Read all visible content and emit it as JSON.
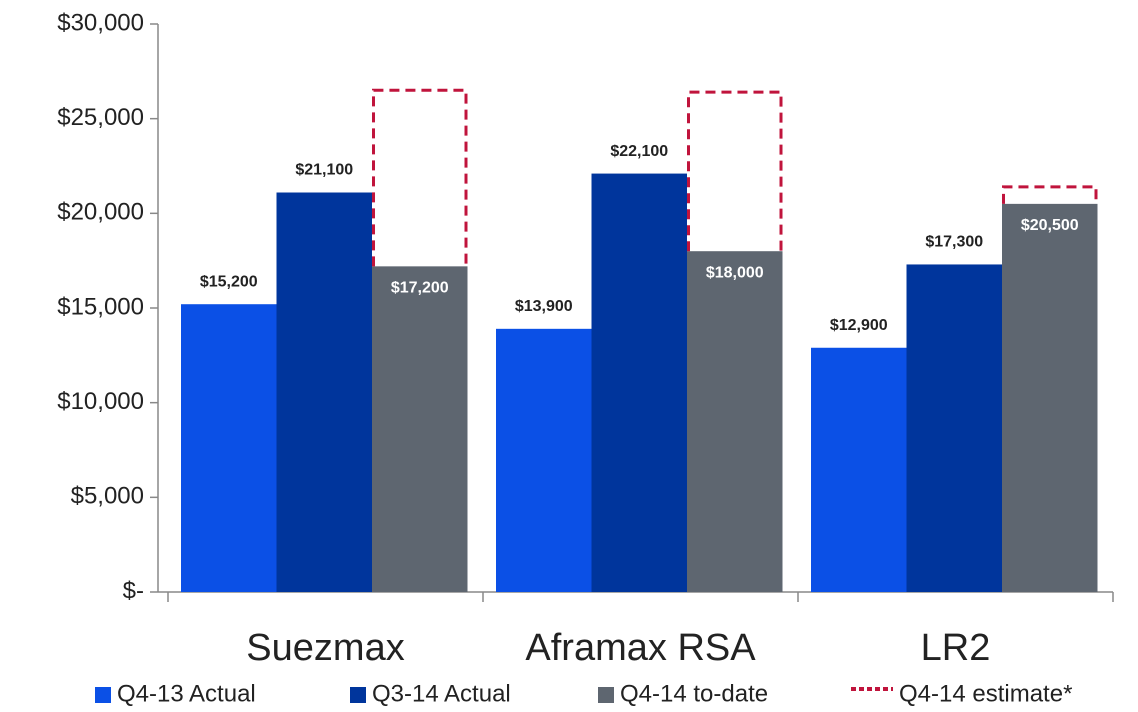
{
  "chart_data": {
    "type": "bar",
    "categories": [
      "Suezmax",
      "Aframax RSA",
      "LR2"
    ],
    "series": [
      {
        "name": "Q4-13 Actual",
        "color": "#0b50e6",
        "values": [
          15200,
          13900,
          12900
        ],
        "value_labels": [
          "$15,200",
          "$13,900",
          "$12,900"
        ]
      },
      {
        "name": "Q3-14 Actual",
        "color": "#00359c",
        "values": [
          21100,
          22100,
          17300
        ],
        "value_labels": [
          "$21,100",
          "$22,100",
          "$17,300"
        ]
      },
      {
        "name": "Q4-14 to-date",
        "color": "#5e6670",
        "values": [
          17200,
          18000,
          20500
        ],
        "value_labels": [
          "$17,200",
          "$18,000",
          "$20,500"
        ]
      },
      {
        "name": "Q4-14 estimate*",
        "color": "#c0143c",
        "values": [
          26500,
          26400,
          21400
        ],
        "line_style": "dashed"
      }
    ],
    "ylim": [
      0,
      30000
    ],
    "yticks": [
      {
        "value": 0,
        "label": "$-"
      },
      {
        "value": 5000,
        "label": "$5,000"
      },
      {
        "value": 10000,
        "label": "$10,000"
      },
      {
        "value": 15000,
        "label": "$15,000"
      },
      {
        "value": 20000,
        "label": "$20,000"
      },
      {
        "value": 25000,
        "label": "$25,000"
      },
      {
        "value": 30000,
        "label": "$30,000"
      }
    ],
    "legend": "bottom"
  }
}
